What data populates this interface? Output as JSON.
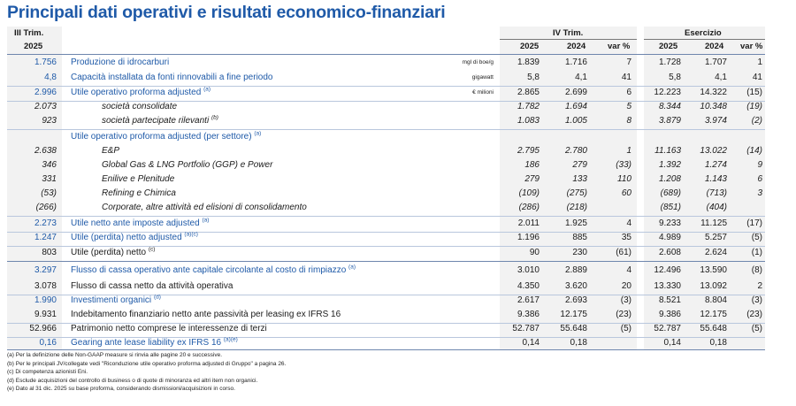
{
  "title": "Principali dati operativi e risultati economico-finanziari",
  "header": {
    "q3_label_1": "III Trim.",
    "q3_label_2": "2025",
    "q4_label": "IV Trim.",
    "ex_label": "Esercizio",
    "col_2025": "2025",
    "col_2024": "2024",
    "col_var": "var %"
  },
  "rows": [
    {
      "q3": "1.756",
      "label": "Produzione di idrocarburi",
      "unit": "mgl di boe/g",
      "v": [
        "1.839",
        "1.716",
        "7"
      ],
      "e": [
        "1.728",
        "1.707",
        "1"
      ]
    },
    {
      "q3": "4,8",
      "label": "Capacità installata da fonti rinnovabili a fine periodo",
      "unit": "gigawatt",
      "v": [
        "5,8",
        "4,1",
        "41"
      ],
      "e": [
        "5,8",
        "4,1",
        "41"
      ]
    },
    {
      "q3": "2.996",
      "label": "Utile operativo proforma adjusted",
      "sup": "(a)",
      "unit": "€ milioni",
      "v": [
        "2.865",
        "2.699",
        "6"
      ],
      "e": [
        "12.223",
        "14.322",
        "(15)"
      ]
    },
    {
      "q3": "2.073",
      "label": "società consolidate",
      "v": [
        "1.782",
        "1.694",
        "5"
      ],
      "e": [
        "8.344",
        "10.348",
        "(19)"
      ]
    },
    {
      "q3": "923",
      "label": "società partecipate rilevanti",
      "sup": "(b)",
      "v": [
        "1.083",
        "1.005",
        "8"
      ],
      "e": [
        "3.879",
        "3.974",
        "(2)"
      ]
    },
    {
      "label": "Utile operativo proforma adjusted (per settore)",
      "sup": "(a)"
    },
    {
      "q3": "2.638",
      "label": "E&P",
      "v": [
        "2.795",
        "2.780",
        "1"
      ],
      "e": [
        "11.163",
        "13.022",
        "(14)"
      ]
    },
    {
      "q3": "346",
      "label": "Global Gas & LNG Portfolio (GGP) e Power",
      "v": [
        "186",
        "279",
        "(33)"
      ],
      "e": [
        "1.392",
        "1.274",
        "9"
      ]
    },
    {
      "q3": "331",
      "label": "Enilive e Plenitude",
      "v": [
        "279",
        "133",
        "110"
      ],
      "e": [
        "1.208",
        "1.143",
        "6"
      ]
    },
    {
      "q3": "(53)",
      "label": "Refining e Chimica",
      "v": [
        "(109)",
        "(275)",
        "60"
      ],
      "e": [
        "(689)",
        "(713)",
        "3"
      ]
    },
    {
      "q3": "(266)",
      "label": "Corporate, altre attività ed elisioni di consolidamento",
      "v": [
        "(286)",
        "(218)",
        ""
      ],
      "e": [
        "(851)",
        "(404)",
        ""
      ]
    },
    {
      "q3": "2.273",
      "label": "Utile netto ante imposte adjusted",
      "sup": "(a)",
      "v": [
        "2.011",
        "1.925",
        "4"
      ],
      "e": [
        "9.233",
        "11.125",
        "(17)"
      ]
    },
    {
      "q3": "1.247",
      "label": "Utile (perdita) netto adjusted",
      "sup": "(a)(c)",
      "v": [
        "1.196",
        "885",
        "35"
      ],
      "e": [
        "4.989",
        "5.257",
        "(5)"
      ]
    },
    {
      "q3": "803",
      "label": "Utile (perdita) netto",
      "sup": "(c)",
      "v": [
        "90",
        "230",
        "(61)"
      ],
      "e": [
        "2.608",
        "2.624",
        "(1)"
      ]
    },
    {
      "q3": "3.297",
      "label": "Flusso di cassa operativo ante capitale circolante al costo di rimpiazzo",
      "sup": "(a)",
      "v": [
        "3.010",
        "2.889",
        "4"
      ],
      "e": [
        "12.496",
        "13.590",
        "(8)"
      ]
    },
    {
      "q3": "3.078",
      "label": "Flusso di cassa netto da attività operativa",
      "v": [
        "4.350",
        "3.620",
        "20"
      ],
      "e": [
        "13.330",
        "13.092",
        "2"
      ]
    },
    {
      "q3": "1.990",
      "label": "Investimenti organici",
      "sup": "(d)",
      "v": [
        "2.617",
        "2.693",
        "(3)"
      ],
      "e": [
        "8.521",
        "8.804",
        "(3)"
      ]
    },
    {
      "q3": "9.931",
      "label": "Indebitamento finanziario netto ante passività per leasing ex IFRS 16",
      "v": [
        "9.386",
        "12.175",
        "(23)"
      ],
      "e": [
        "9.386",
        "12.175",
        "(23)"
      ]
    },
    {
      "q3": "52.966",
      "label": "Patrimonio netto comprese le interessenze di terzi",
      "v": [
        "52.787",
        "55.648",
        "(5)"
      ],
      "e": [
        "52.787",
        "55.648",
        "(5)"
      ]
    },
    {
      "q3": "0,16",
      "label": "Gearing ante lease liability ex IFRS 16",
      "sup": "(a)(e)",
      "v": [
        "0,14",
        "0,18",
        ""
      ],
      "e": [
        "0,14",
        "0,18",
        ""
      ]
    }
  ],
  "notes": [
    "(a) Per la definizione delle Non-GAAP measure si rinvia alle pagine 20 e successive.",
    "(b) Per le principali JV/collegate vedi \"Riconduzione utile operativo proforma adjusted di Gruppo\" a pagina 26.",
    "(c) Di competenza azionisti Eni.",
    "(d) Esclude acquisizioni del controllo di business o di quote di minoranza ed altri item non organici.",
    "(e) Dato al 31 dic. 2025 su base proforma, considerando dismissioni/acquisizioni in corso."
  ],
  "colors": {
    "title": "#1f5aa8",
    "highlight": "#1f5aa8",
    "band": "#f2f2f2"
  }
}
